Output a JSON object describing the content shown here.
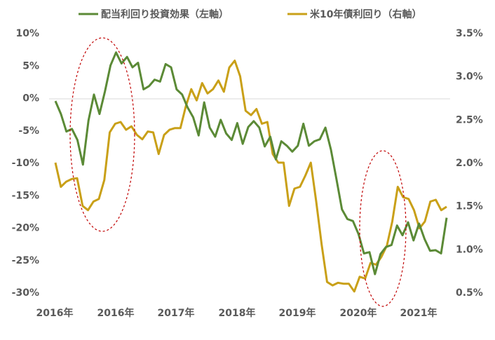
{
  "chart_data": {
    "type": "line",
    "colors": {
      "left_series": "#5b8a36",
      "right_series": "#c9a018",
      "ellipse": "#c00000",
      "zero_line": "#d9d9d9",
      "text": "#595959"
    },
    "x_labels": [
      "2016年",
      "2016年",
      "2017年",
      "2018年",
      "2019年",
      "2020年",
      "2021年"
    ],
    "left_axis": {
      "ticks": [
        "10%",
        "5%",
        "0%",
        "-5%",
        "-10%",
        "-15%",
        "-20%",
        "-25%",
        "-30%"
      ],
      "ylim": [
        -30,
        10
      ]
    },
    "right_axis": {
      "ticks": [
        "3.5%",
        "3.0%",
        "2.5%",
        "2.0%",
        "1.5%",
        "1.0%",
        "0.5%"
      ],
      "ylim": [
        0.5,
        3.5
      ]
    },
    "series": [
      {
        "name": "配当利回り投資効果（左軸）",
        "axis": "left",
        "values": [
          -0.5,
          -2.5,
          -5.2,
          -4.8,
          -6.5,
          -10.3,
          -3.5,
          0.5,
          -2.5,
          1.0,
          5.0,
          7.0,
          5.3,
          6.3,
          4.7,
          5.4,
          1.3,
          1.8,
          2.8,
          2.5,
          5.2,
          4.7,
          1.3,
          0.5,
          -1.5,
          -3.0,
          -5.8,
          -0.7,
          -4.6,
          -6.0,
          -3.4,
          -5.5,
          -6.5,
          -3.9,
          -7.1,
          -4.5,
          -3.6,
          -4.6,
          -7.5,
          -6.0,
          -9.5,
          -6.7,
          -7.4,
          -8.3,
          -7.4,
          -4.0,
          -7.4,
          -6.7,
          -6.4,
          -4.6,
          -8.0,
          -12.5,
          -17.2,
          -18.7,
          -19.0,
          -21.0,
          -24.0,
          -23.8,
          -27.2,
          -24.1,
          -23.0,
          -22.7,
          -19.7,
          -21.2,
          -19.2,
          -22.0,
          -19.4,
          -21.8,
          -23.6,
          -23.5,
          -24.0,
          -18.5
        ]
      },
      {
        "name": "米10年債利回り（右軸）",
        "axis": "right",
        "values": [
          2.0,
          1.72,
          1.78,
          1.81,
          1.82,
          1.5,
          1.45,
          1.55,
          1.58,
          1.8,
          2.35,
          2.45,
          2.47,
          2.38,
          2.42,
          2.32,
          2.27,
          2.36,
          2.35,
          2.1,
          2.32,
          2.38,
          2.4,
          2.4,
          2.65,
          2.85,
          2.72,
          2.92,
          2.8,
          2.85,
          2.95,
          2.82,
          3.1,
          3.18,
          3.0,
          2.6,
          2.55,
          2.62,
          2.45,
          2.47,
          2.1,
          2.0,
          2.0,
          1.5,
          1.7,
          1.72,
          1.85,
          2.0,
          1.55,
          1.05,
          0.62,
          0.58,
          0.61,
          0.6,
          0.6,
          0.51,
          0.68,
          0.66,
          0.84,
          0.82,
          0.91,
          1.04,
          1.32,
          1.72,
          1.6,
          1.58,
          1.45,
          1.24,
          1.32,
          1.55,
          1.57,
          1.45,
          1.49
        ]
      }
    ]
  }
}
